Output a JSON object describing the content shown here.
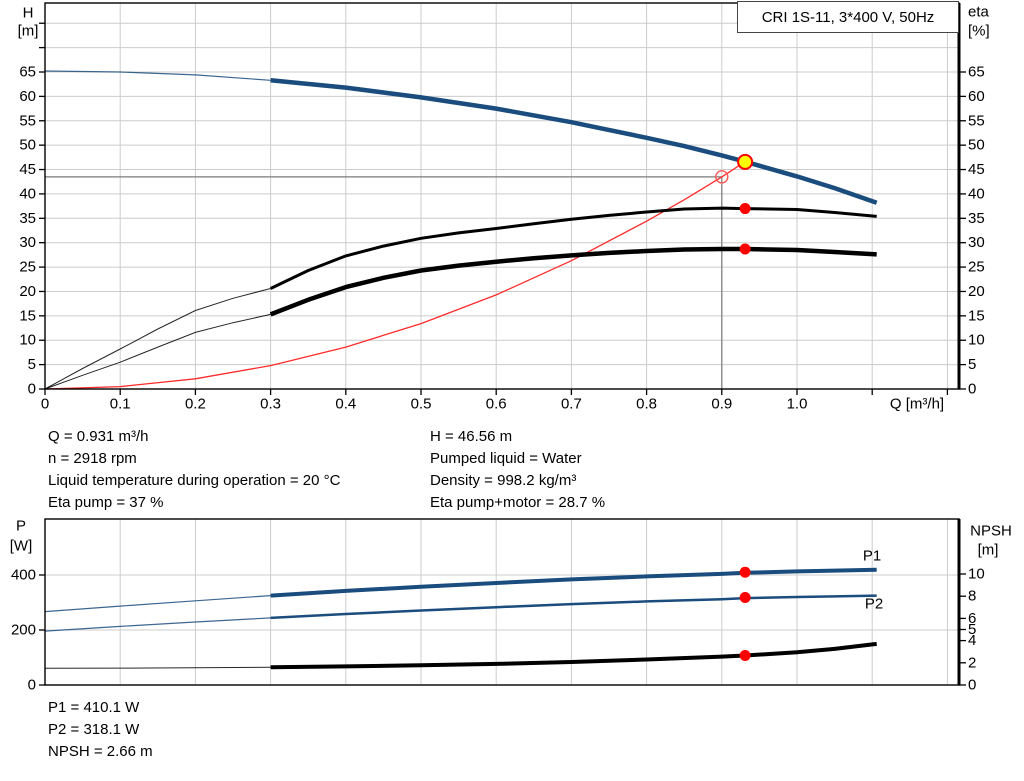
{
  "title_box": "CRI 1S-11, 3*400 V, 50Hz",
  "colors": {
    "curve_blue": "#1a4c7d",
    "curve_black": "#000000",
    "system_curve_red": "#ff2b2b",
    "marker_red": "#ff0000",
    "marker_yellow": "#ffff00",
    "grid": "#cccccc",
    "duty_line": "#7a7a7a",
    "axis": "#000000"
  },
  "info_top_left": {
    "lines": [
      "Q = 0.931 m³/h",
      "n = 2918 rpm",
      "Liquid temperature during operation = 20 °C",
      "Eta pump = 37 %"
    ]
  },
  "info_top_right": {
    "lines": [
      "H = 46.56 m",
      "Pumped liquid = Water",
      "Density = 998.2 kg/m³",
      "Eta pump+motor = 28.7 %"
    ]
  },
  "info_bottom": {
    "lines": [
      "P1 = 410.1 W",
      "P2 = 318.1 W",
      "NPSH = 2.66 m"
    ]
  },
  "chart_data": [
    {
      "id": "head-efficiency",
      "type": "line",
      "title": "CRI 1S-11, 3*400 V, 50Hz",
      "x_axis": {
        "label": "Q [m³/h]",
        "min": 0,
        "max": 1.215,
        "tick_values": [
          0,
          0.1,
          0.2,
          0.3,
          0.4,
          0.5,
          0.6,
          0.7,
          0.8,
          0.9,
          1.0,
          1.1,
          1.2
        ],
        "tick_labels": [
          "0",
          "0.1",
          "0.2",
          "0.3",
          "0.4",
          "0.5",
          "0.6",
          "0.7",
          "0.8",
          "0.9",
          "1.0"
        ]
      },
      "y_left": {
        "title": "H",
        "unit": "[m]",
        "min": 0,
        "max": 79,
        "ticks": [
          0,
          5,
          10,
          15,
          20,
          25,
          30,
          35,
          40,
          45,
          50,
          55,
          60,
          65
        ],
        "extra_ticks": [
          70,
          75
        ]
      },
      "y_right": {
        "title": "eta",
        "unit": "[%]",
        "min": 0,
        "max": 79,
        "ticks": [
          0,
          5,
          10,
          15,
          20,
          25,
          30,
          35,
          40,
          45,
          50,
          55,
          60,
          65
        ],
        "extra_ticks": [
          70,
          75
        ]
      },
      "grid": true,
      "duty_point": {
        "q": 0.9,
        "h": 43.5
      },
      "series": [
        {
          "name": "system-curve",
          "axis": "left",
          "color": "#ff2b2b",
          "thin": 1.3,
          "thick": 1.3,
          "split_q": null,
          "points": [
            [
              0,
              0
            ],
            [
              0.1,
              0.5
            ],
            [
              0.2,
              2.1
            ],
            [
              0.3,
              4.8
            ],
            [
              0.4,
              8.6
            ],
            [
              0.5,
              13.4
            ],
            [
              0.6,
              19.3
            ],
            [
              0.7,
              26.3
            ],
            [
              0.8,
              34.4
            ],
            [
              0.85,
              38.8
            ],
            [
              0.9,
              43.5
            ],
            [
              0.931,
              46.6
            ]
          ]
        },
        {
          "name": "eta-pump",
          "axis": "left",
          "color": "#000000",
          "thin": 1,
          "thick": 3,
          "split_q": 0.3,
          "points": [
            [
              0,
              0
            ],
            [
              0.05,
              4.2
            ],
            [
              0.1,
              8.2
            ],
            [
              0.15,
              12.3
            ],
            [
              0.2,
              16.1
            ],
            [
              0.25,
              18.6
            ],
            [
              0.3,
              20.6
            ],
            [
              0.35,
              24.3
            ],
            [
              0.4,
              27.3
            ],
            [
              0.45,
              29.3
            ],
            [
              0.5,
              30.9
            ],
            [
              0.55,
              32.0
            ],
            [
              0.6,
              32.9
            ],
            [
              0.65,
              33.9
            ],
            [
              0.7,
              34.8
            ],
            [
              0.75,
              35.6
            ],
            [
              0.8,
              36.3
            ],
            [
              0.85,
              36.9
            ],
            [
              0.9,
              37.1
            ],
            [
              0.931,
              37.0
            ],
            [
              1.0,
              36.8
            ],
            [
              1.05,
              36.2
            ],
            [
              1.106,
              35.4
            ]
          ]
        },
        {
          "name": "eta-pump-motor",
          "axis": "left",
          "color": "#000000",
          "thin": 1,
          "thick": 4.5,
          "split_q": 0.3,
          "points": [
            [
              0,
              0
            ],
            [
              0.05,
              2.8
            ],
            [
              0.1,
              5.5
            ],
            [
              0.15,
              8.6
            ],
            [
              0.2,
              11.6
            ],
            [
              0.25,
              13.6
            ],
            [
              0.3,
              15.3
            ],
            [
              0.35,
              18.3
            ],
            [
              0.4,
              20.9
            ],
            [
              0.45,
              22.8
            ],
            [
              0.5,
              24.3
            ],
            [
              0.55,
              25.3
            ],
            [
              0.6,
              26.1
            ],
            [
              0.65,
              26.8
            ],
            [
              0.7,
              27.4
            ],
            [
              0.75,
              27.9
            ],
            [
              0.8,
              28.3
            ],
            [
              0.85,
              28.6
            ],
            [
              0.9,
              28.7
            ],
            [
              0.931,
              28.7
            ],
            [
              1.0,
              28.5
            ],
            [
              1.05,
              28.1
            ],
            [
              1.106,
              27.6
            ]
          ]
        },
        {
          "name": "H-curve",
          "axis": "left",
          "color": "#1a4c7d",
          "thin": 1.2,
          "thick": 4.5,
          "split_q": 0.3,
          "points": [
            [
              0,
              65.2
            ],
            [
              0.1,
              65.0
            ],
            [
              0.2,
              64.4
            ],
            [
              0.3,
              63.3
            ],
            [
              0.4,
              61.8
            ],
            [
              0.5,
              59.8
            ],
            [
              0.6,
              57.5
            ],
            [
              0.7,
              54.7
            ],
            [
              0.8,
              51.5
            ],
            [
              0.85,
              49.8
            ],
            [
              0.9,
              47.9
            ],
            [
              0.931,
              46.6
            ],
            [
              1.0,
              43.6
            ],
            [
              1.05,
              41.2
            ],
            [
              1.106,
              38.2
            ]
          ]
        }
      ],
      "markers": [
        {
          "kind": "open-circle",
          "q": 0.9,
          "v": 43.5,
          "axis": "left"
        },
        {
          "kind": "yellow-dot",
          "q": 0.931,
          "v": 46.56,
          "axis": "left"
        },
        {
          "kind": "red-dot",
          "q": 0.931,
          "v": 37.0,
          "axis": "left"
        },
        {
          "kind": "red-dot",
          "q": 0.931,
          "v": 28.7,
          "axis": "left"
        }
      ]
    },
    {
      "id": "power-npsh",
      "type": "line",
      "x_axis": {
        "min": 0,
        "max": 1.215,
        "tick_values": [
          0,
          0.1,
          0.2,
          0.3,
          0.4,
          0.5,
          0.6,
          0.7,
          0.8,
          0.9,
          1.0,
          1.1,
          1.2
        ],
        "tick_labels": []
      },
      "y_left": {
        "title": "P",
        "unit": "[W]",
        "min": 0,
        "max": 604,
        "ticks": [
          0,
          200,
          400
        ],
        "gridlines": [
          200,
          400
        ]
      },
      "y_right": {
        "title": "NPSH",
        "unit": "[m]",
        "min": 0,
        "max": 15,
        "ticks": [
          0,
          2,
          4,
          5,
          6,
          8,
          10
        ]
      },
      "series": [
        {
          "name": "P1-curve",
          "label": "P1",
          "axis": "left",
          "color": "#1a4c7d",
          "thin": 1.2,
          "thick": 4,
          "split_q": 0.3,
          "points": [
            [
              0,
              267
            ],
            [
              0.1,
              287
            ],
            [
              0.2,
              306
            ],
            [
              0.3,
              325
            ],
            [
              0.4,
              342
            ],
            [
              0.5,
              357
            ],
            [
              0.6,
              371
            ],
            [
              0.7,
              384
            ],
            [
              0.8,
              395
            ],
            [
              0.9,
              404
            ],
            [
              0.931,
              408
            ],
            [
              1.0,
              413
            ],
            [
              1.05,
              416
            ],
            [
              1.106,
              419
            ]
          ]
        },
        {
          "name": "P2-curve",
          "label": "P2",
          "axis": "left",
          "color": "#1a4c7d",
          "thin": 1.2,
          "thick": 2.5,
          "split_q": 0.3,
          "points": [
            [
              0,
              196
            ],
            [
              0.1,
              213
            ],
            [
              0.2,
              229
            ],
            [
              0.3,
              244
            ],
            [
              0.4,
              258
            ],
            [
              0.5,
              271
            ],
            [
              0.6,
              283
            ],
            [
              0.7,
              294
            ],
            [
              0.8,
              304
            ],
            [
              0.9,
              312
            ],
            [
              0.931,
              316
            ],
            [
              1.0,
              320
            ],
            [
              1.05,
              322
            ],
            [
              1.106,
              325
            ]
          ]
        },
        {
          "name": "NPSH-curve",
          "axis": "right",
          "color": "#000000",
          "thin": 1,
          "thick": 4,
          "split_q": 0.3,
          "points": [
            [
              0,
              1.5
            ],
            [
              0.1,
              1.52
            ],
            [
              0.2,
              1.55
            ],
            [
              0.3,
              1.6
            ],
            [
              0.4,
              1.68
            ],
            [
              0.5,
              1.78
            ],
            [
              0.6,
              1.9
            ],
            [
              0.7,
              2.07
            ],
            [
              0.8,
              2.3
            ],
            [
              0.9,
              2.56
            ],
            [
              0.931,
              2.66
            ],
            [
              1.0,
              2.95
            ],
            [
              1.05,
              3.25
            ],
            [
              1.106,
              3.7
            ]
          ]
        }
      ],
      "markers": [
        {
          "kind": "red-dot",
          "q": 0.931,
          "v": 410.1,
          "axis": "left"
        },
        {
          "kind": "red-dot",
          "q": 0.931,
          "v": 318.1,
          "axis": "left"
        },
        {
          "kind": "red-dot",
          "q": 0.931,
          "v": 2.66,
          "axis": "right"
        }
      ]
    }
  ]
}
